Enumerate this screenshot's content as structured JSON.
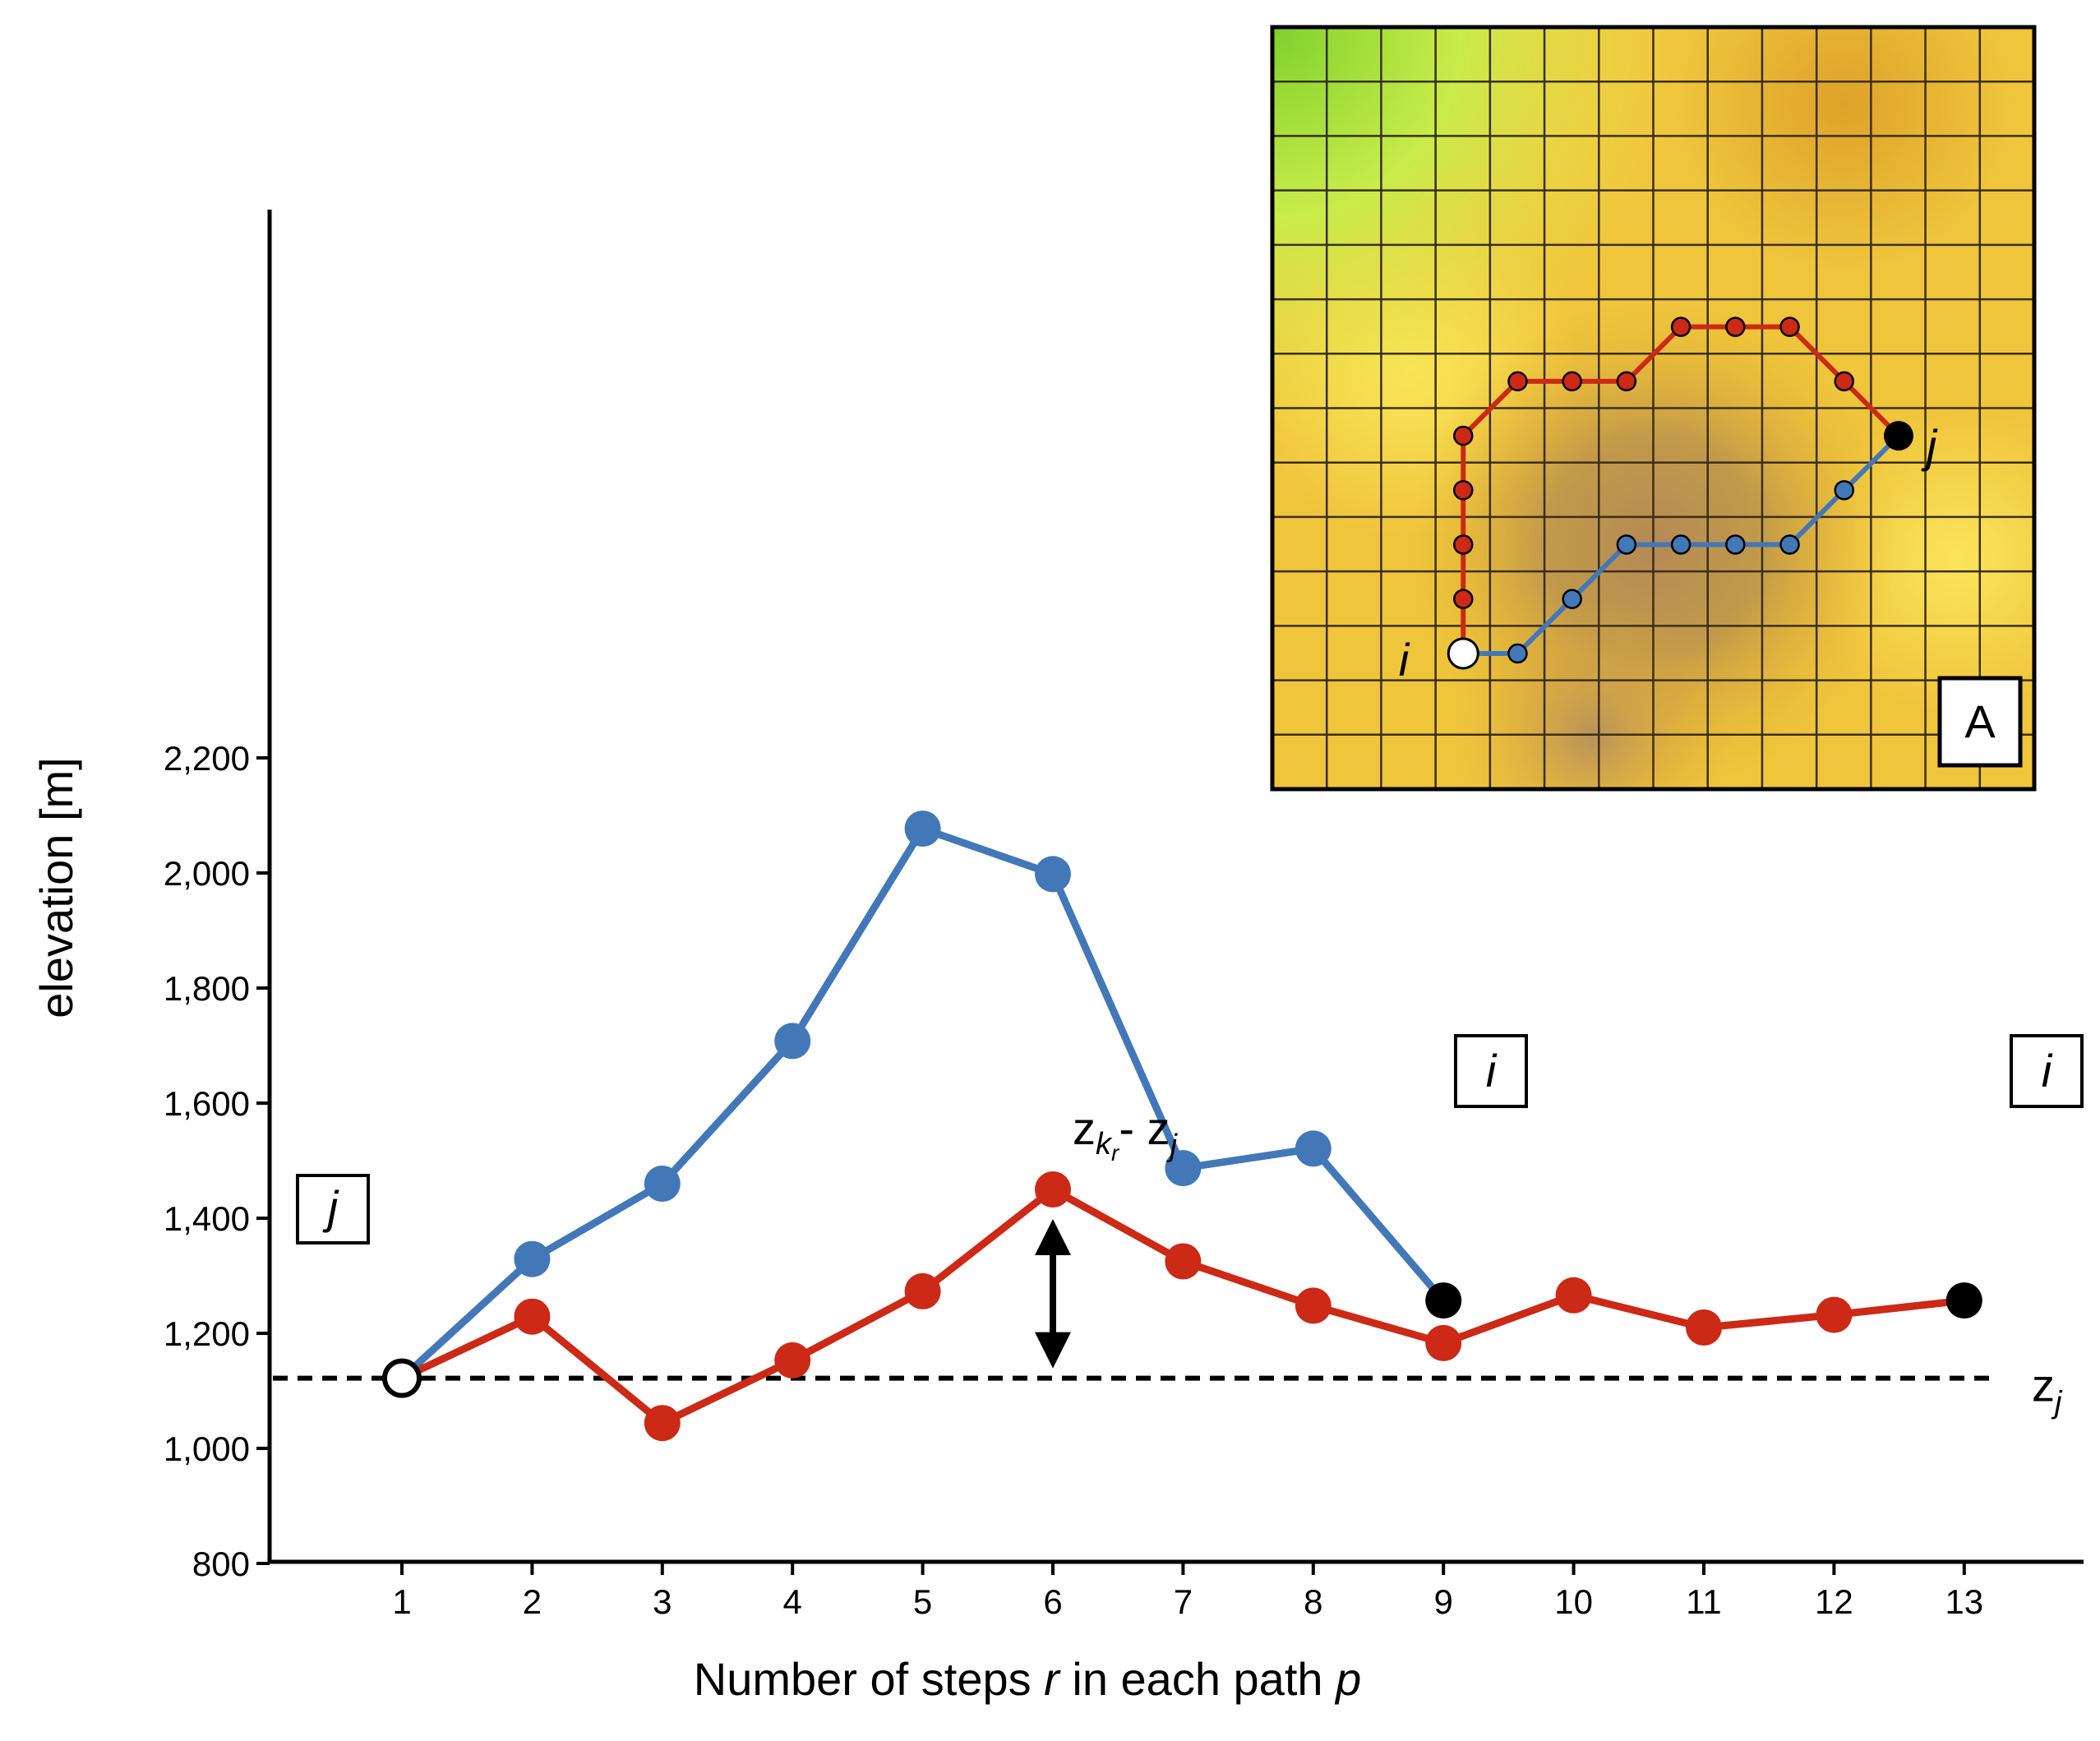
{
  "chart_data": {
    "type": "line",
    "xlabel_parts": [
      {
        "text": "Number of steps ",
        "italic": false
      },
      {
        "text": "r",
        "italic": true
      },
      {
        "text": " in each path ",
        "italic": false
      },
      {
        "text": "p",
        "italic": true
      }
    ],
    "ylabel": "elevation [m]",
    "ylim": [
      800,
      2250
    ],
    "xlim": [
      0,
      13.6
    ],
    "x_ticks": [
      1,
      2,
      3,
      4,
      5,
      6,
      7,
      8,
      9,
      10,
      11,
      12,
      13
    ],
    "y_ticks": [
      800,
      1000,
      1200,
      1400,
      1600,
      1800,
      2000,
      2200
    ],
    "y_tick_labels": [
      "800",
      "1,000",
      "1,200",
      "1,400",
      "1,600",
      "1,800",
      "2,000",
      "2,200"
    ],
    "series": [
      {
        "color": "#4277b8",
        "x": [
          1,
          2,
          3,
          4,
          5,
          6,
          7,
          8,
          9
        ],
        "y": [
          1122,
          1329,
          1460,
          1708,
          2077,
          1998,
          1487,
          1521,
          1257
        ]
      },
      {
        "color": "#cc2a17",
        "x": [
          1,
          2,
          3,
          4,
          5,
          6,
          7,
          8,
          9,
          10,
          11,
          12,
          13
        ],
        "y": [
          1122,
          1229,
          1044,
          1153,
          1273,
          1450,
          1325,
          1248,
          1183,
          1266,
          1210,
          1232,
          1257
        ]
      }
    ],
    "reference_line": {
      "y": 1122,
      "label": "z",
      "label_sub": "j",
      "style": "dashed"
    },
    "start_marker": {
      "x": 1,
      "y": 1122,
      "label": "j",
      "fill": "#ffffff"
    },
    "end_markers": [
      {
        "x": 9,
        "y": 1257,
        "label": "i",
        "fill": "#000000"
      },
      {
        "x": 13,
        "y": 1257,
        "label": "i",
        "fill": "#000000"
      }
    ],
    "difference_arrow": {
      "x": 6,
      "y_top": 1450,
      "y_bottom": 1122,
      "label_main": "z",
      "label_sub": "k",
      "label_subsub": "r",
      "label_rest": "- z",
      "label_rest_sub": "j"
    }
  },
  "inset": {
    "panel_label": "A",
    "grid_cols": 14,
    "grid_rows": 14,
    "start_label": "i",
    "end_label": "j",
    "red_path": [
      [
        3.5,
        11.5
      ],
      [
        3.5,
        10.5
      ],
      [
        3.5,
        9.5
      ],
      [
        3.5,
        8.5
      ],
      [
        3.5,
        7.5
      ],
      [
        4.5,
        6.5
      ],
      [
        5.5,
        6.5
      ],
      [
        6.5,
        6.5
      ],
      [
        7.5,
        5.5
      ],
      [
        8.5,
        5.5
      ],
      [
        9.5,
        5.5
      ],
      [
        10.5,
        6.5
      ],
      [
        11.5,
        7.5
      ]
    ],
    "blue_path": [
      [
        3.5,
        11.5
      ],
      [
        4.5,
        11.5
      ],
      [
        5.5,
        10.5
      ],
      [
        6.5,
        9.5
      ],
      [
        7.5,
        9.5
      ],
      [
        8.5,
        9.5
      ],
      [
        9.5,
        9.5
      ],
      [
        10.5,
        8.5
      ],
      [
        11.5,
        7.5
      ]
    ],
    "colors": {
      "red": "#cc2a17",
      "blue": "#4277b8",
      "grid": "#3a2f14"
    }
  }
}
